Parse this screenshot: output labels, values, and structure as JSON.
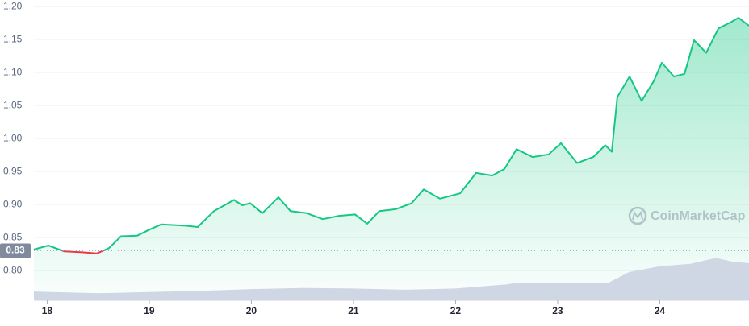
{
  "chart_data": {
    "type": "line",
    "x": [
      17.87,
      18.012,
      18.17,
      18.328,
      18.487,
      18.605,
      18.724,
      18.882,
      19.0,
      19.119,
      19.356,
      19.475,
      19.633,
      19.83,
      19.91,
      19.989,
      20.107,
      20.265,
      20.384,
      20.542,
      20.7,
      20.858,
      21.016,
      21.135,
      21.253,
      21.412,
      21.57,
      21.688,
      21.846,
      22.044,
      22.202,
      22.36,
      22.479,
      22.597,
      22.755,
      22.913,
      23.032,
      23.19,
      23.348,
      23.467,
      23.53,
      23.585,
      23.704,
      23.823,
      23.941,
      24.02,
      24.139,
      24.242,
      24.336,
      24.455,
      24.574,
      24.692,
      24.771,
      24.874
    ],
    "series": [
      {
        "color": "#16c784",
        "below_color": "#ea3943",
        "values": [
          0.832,
          0.838,
          0.829,
          0.828,
          0.826,
          0.834,
          0.852,
          0.853,
          0.862,
          0.87,
          0.868,
          0.866,
          0.89,
          0.907,
          0.899,
          0.902,
          0.887,
          0.911,
          0.89,
          0.887,
          0.878,
          0.883,
          0.885,
          0.871,
          0.89,
          0.893,
          0.902,
          0.923,
          0.909,
          0.917,
          0.948,
          0.944,
          0.954,
          0.984,
          0.972,
          0.976,
          0.993,
          0.963,
          0.972,
          0.99,
          0.98,
          1.063,
          1.094,
          1.057,
          1.087,
          1.115,
          1.094,
          1.098,
          1.149,
          1.13,
          1.167,
          1.176,
          1.183,
          1.171
        ]
      }
    ],
    "baseline": {
      "value": 0.83,
      "label": "0.83"
    },
    "xlim": [
      17.87,
      24.874
    ],
    "xticks": [
      18,
      19,
      20,
      21,
      22,
      23,
      24
    ],
    "ylim": [
      0.755,
      1.21
    ],
    "yticks": [
      {
        "value": 0.8,
        "label": "0.80"
      },
      {
        "value": 0.85,
        "label": "0.85"
      },
      {
        "value": 0.9,
        "label": "0.90"
      },
      {
        "value": 0.95,
        "label": "0.95"
      },
      {
        "value": 1.0,
        "label": "1.00"
      },
      {
        "value": 1.05,
        "label": "1.05"
      },
      {
        "value": 1.1,
        "label": "1.10"
      },
      {
        "value": 1.15,
        "label": "1.15"
      },
      {
        "value": 1.2,
        "label": "1.20"
      }
    ],
    "grid": true,
    "volume": {
      "color": "#cfd6e4",
      "ylim": [
        0,
        100
      ],
      "x": [
        17.87,
        18.5,
        19.0,
        19.5,
        20.0,
        20.5,
        21.0,
        21.5,
        22.0,
        22.5,
        22.6,
        23.0,
        23.5,
        23.7,
        24.0,
        24.3,
        24.55,
        24.7,
        24.874
      ],
      "values": [
        15,
        12,
        14,
        16,
        19,
        21,
        20,
        18,
        20,
        27,
        30,
        29,
        30,
        48,
        58,
        62,
        72,
        66,
        63
      ]
    },
    "watermark": "CoinMarketCap"
  }
}
